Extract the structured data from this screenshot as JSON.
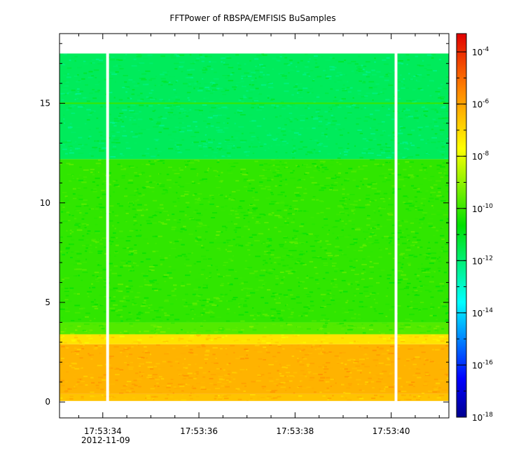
{
  "chart_data": {
    "type": "heatmap",
    "title": "FFTPower of RBSPA/EMFISIS  BuSamples",
    "xlabel": "",
    "ylabel": "",
    "x_date": "2012-11-09",
    "x_ticks": [
      "17:53:34",
      "17:53:36",
      "17:53:38",
      "17:53:40"
    ],
    "x_range": [
      "17:53:33.1",
      "17:53:41.2"
    ],
    "y_ticks": [
      0,
      5,
      10,
      15
    ],
    "ylim": [
      -0.8,
      18.5
    ],
    "data_extent": {
      "x": [
        "17:53:33.1",
        "17:53:41.2"
      ],
      "y": [
        0.05,
        17.5
      ]
    },
    "gaps": [
      "17:53:34.1",
      "17:53:40.1"
    ],
    "bands": [
      {
        "y0": 0.05,
        "y1": 0.4,
        "level": -6.6
      },
      {
        "y0": 0.4,
        "y1": 2.9,
        "level": -6.3
      },
      {
        "y0": 2.9,
        "y1": 3.4,
        "level": -7.2
      },
      {
        "y0": 3.4,
        "y1": 4.0,
        "level": -9.7
      },
      {
        "y0": 4.0,
        "y1": 12.2,
        "level": -10.1
      },
      {
        "y0": 12.2,
        "y1": 17.5,
        "level": -11.7
      }
    ],
    "lines": [
      {
        "y": 15.0,
        "level": -10.0
      }
    ],
    "colorbar": {
      "scale": "log",
      "range": [
        -18,
        -3.3
      ],
      "ticks": [
        -4,
        -6,
        -8,
        -10,
        -12,
        -14,
        -16,
        -18
      ],
      "base_label": "10"
    },
    "colors": {
      "min": "#00008f",
      "blue": "#0000ff",
      "cyan": "#00ffff",
      "green": "#00e000",
      "yellow": "#ffff00",
      "orange": "#ff8000",
      "max": "#e00000"
    }
  }
}
